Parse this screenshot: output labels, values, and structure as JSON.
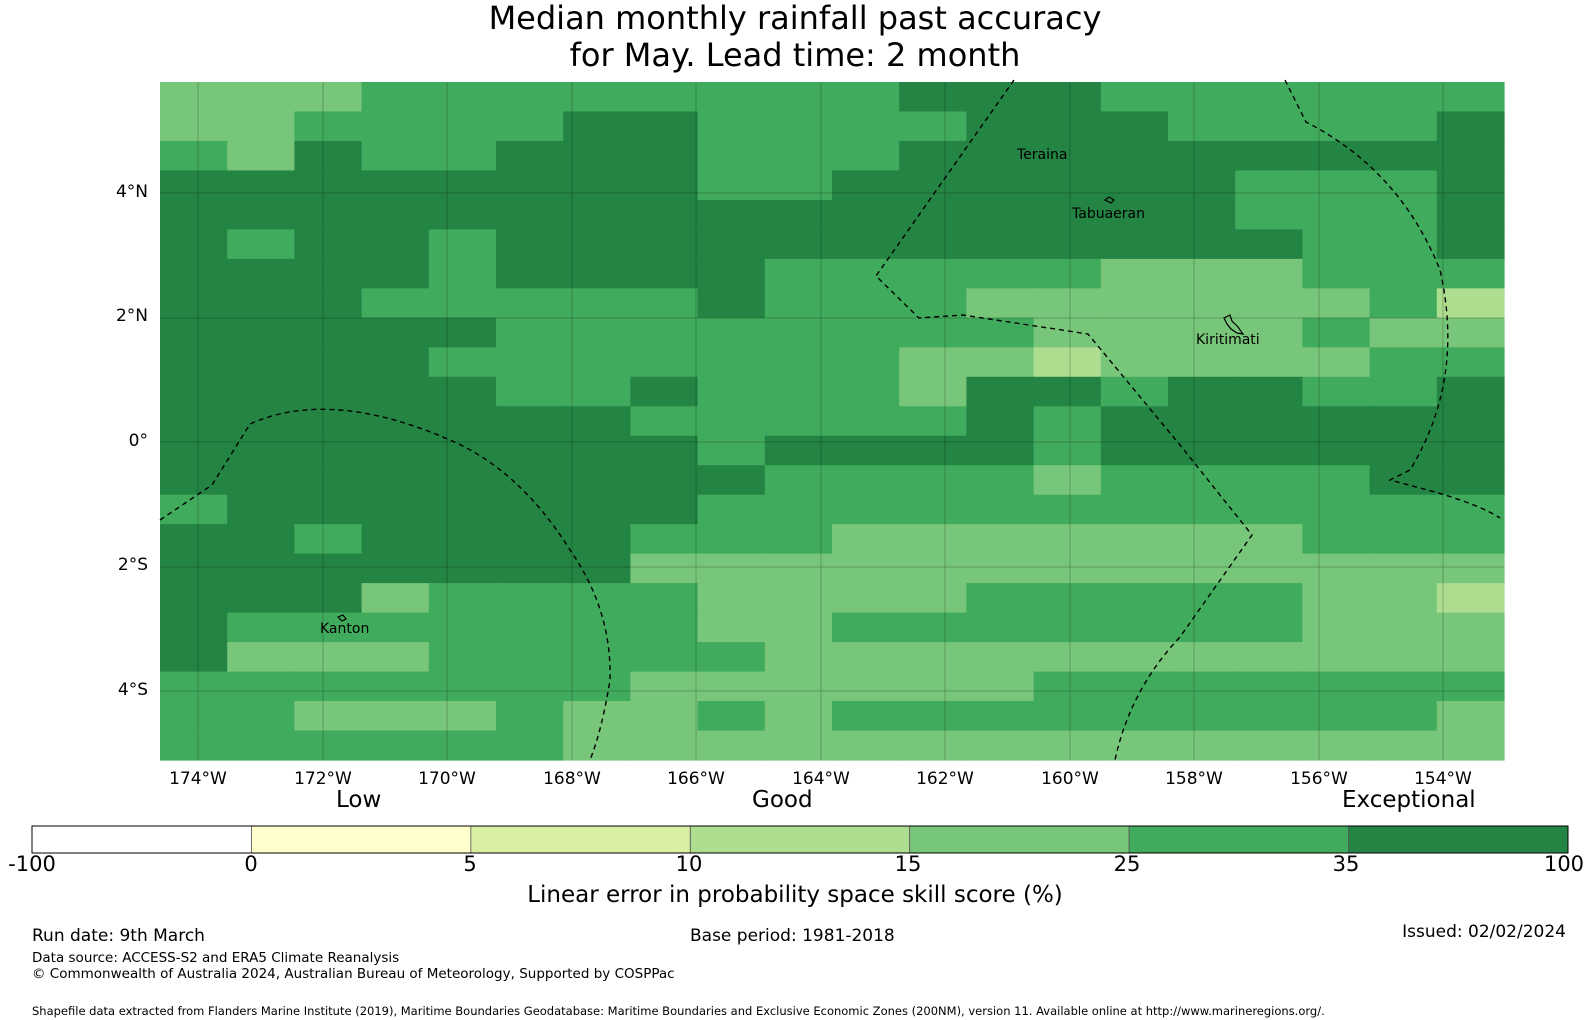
{
  "title": {
    "line1": "Median monthly rainfall past accuracy",
    "line2": "for May. Lead time: 2 month"
  },
  "colors": {
    "c0": "#ffffff",
    "c1": "#ffffcc",
    "c2": "#d9f0a3",
    "c3": "#addd8e",
    "c4": "#78c679",
    "c5": "#41ab5d",
    "c6": "#238443"
  },
  "map": {
    "lat_labels": [
      "4°N",
      "2°N",
      "0°",
      "2°S",
      "4°S"
    ],
    "lon_labels": [
      "174°W",
      "172°W",
      "170°W",
      "168°W",
      "166°W",
      "164°W",
      "162°W",
      "160°W",
      "158°W",
      "156°W",
      "154°W"
    ],
    "places": [
      "Teraina",
      "Tabuaeran",
      "Kiritimati",
      "Kanton"
    ],
    "grid_values": [
      "44455555555666555555",
      "44555566555566655556",
      "54655666555666666666",
      "66666666556666665556",
      "66666666666666665556",
      "65665666666666666556",
      "66665666655555444555",
      "66655555655544444453",
      "66666555555554444544",
      "66665555555443444455",
      "66666556555466566556",
      "66666665555565666666",
      "66666666566665666666",
      "66666666655554555566",
      "56666666555555555555",
      "66566665554444444555",
      "66666664444444444444",
      "66645555444455555443",
      "65555555445555555444",
      "64445555544444444444",
      "55555554444445555555",
      "55444544545555555554",
      "55555544444444444444"
    ]
  },
  "legend": {
    "categories": [
      "Low",
      "Good",
      "Exceptional"
    ],
    "ticks": [
      "-100",
      "0",
      "5",
      "10",
      "15",
      "25",
      "35",
      "100"
    ],
    "title": "Linear error in probability space skill score (%)"
  },
  "footer": {
    "run_date": "Run date: 9th March",
    "base_period": "Base period: 1981-2018",
    "issued": "Issued: 02/02/2024",
    "data_source": "Data source: ACCESS-S2 and ERA5 Climate Reanalysis",
    "copyright": "© Commonwealth of Australia 2024, Australian Bureau of Meteorology, Supported by COSPPac",
    "shapefile": "Shapefile data extracted from Flanders Marine Institute (2019), Maritime Boundaries Geodatabase: Maritime Boundaries and Exclusive Economic Zones (200NM), version 11. Available online at http://www.marineregions.org/."
  }
}
